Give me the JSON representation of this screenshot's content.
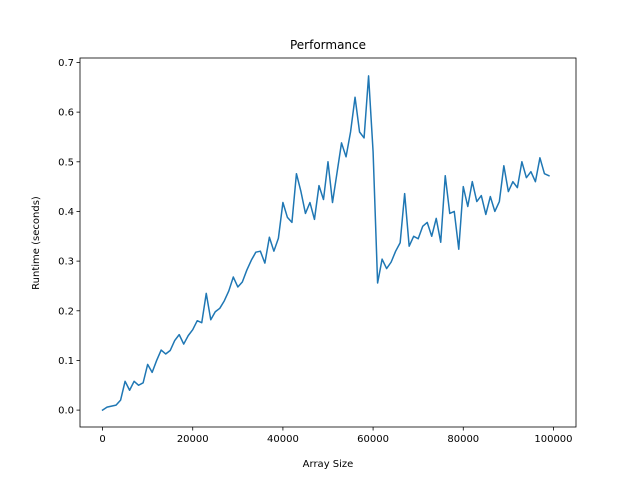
{
  "chart_data": {
    "type": "line",
    "title": "Performance",
    "xlabel": "Array Size",
    "ylabel": "Runtime (seconds)",
    "xlim": [
      -5000,
      105000
    ],
    "ylim": [
      -0.034,
      0.709
    ],
    "grid": false,
    "x_ticks": [
      0,
      20000,
      40000,
      60000,
      80000,
      100000
    ],
    "x_tick_labels": [
      "0",
      "20000",
      "40000",
      "60000",
      "80000",
      "100000"
    ],
    "y_ticks": [
      0.0,
      0.1,
      0.2,
      0.3,
      0.4,
      0.5,
      0.6,
      0.7
    ],
    "y_tick_labels": [
      "0.0",
      "0.1",
      "0.2",
      "0.3",
      "0.4",
      "0.5",
      "0.6",
      "0.7"
    ],
    "series": [
      {
        "color": "#1f77b4",
        "x": [
          0,
          1000,
          2000,
          3000,
          4000,
          5000,
          6000,
          7000,
          8000,
          9000,
          10000,
          11000,
          12000,
          13000,
          14000,
          15000,
          16000,
          17000,
          18000,
          19000,
          20000,
          21000,
          22000,
          23000,
          24000,
          25000,
          26000,
          27000,
          28000,
          29000,
          30000,
          31000,
          32000,
          33000,
          34000,
          35000,
          36000,
          37000,
          38000,
          39000,
          40000,
          41000,
          42000,
          43000,
          44000,
          45000,
          46000,
          47000,
          48000,
          49000,
          50000,
          51000,
          52000,
          53000,
          54000,
          55000,
          56000,
          57000,
          58000,
          59000,
          60000,
          61000,
          62000,
          63000,
          64000,
          65000,
          66000,
          67000,
          68000,
          69000,
          70000,
          71000,
          72000,
          73000,
          74000,
          75000,
          76000,
          77000,
          78000,
          79000,
          80000,
          81000,
          82000,
          83000,
          84000,
          85000,
          86000,
          87000,
          88000,
          89000,
          90000,
          91000,
          92000,
          93000,
          94000,
          95000,
          96000,
          97000,
          98000,
          99000
        ],
        "y": [
          0.0,
          0.006,
          0.008,
          0.01,
          0.02,
          0.058,
          0.04,
          0.058,
          0.05,
          0.055,
          0.092,
          0.076,
          0.1,
          0.121,
          0.113,
          0.12,
          0.14,
          0.152,
          0.133,
          0.15,
          0.162,
          0.18,
          0.176,
          0.235,
          0.182,
          0.198,
          0.205,
          0.22,
          0.24,
          0.268,
          0.248,
          0.258,
          0.282,
          0.302,
          0.318,
          0.32,
          0.296,
          0.348,
          0.32,
          0.346,
          0.418,
          0.388,
          0.378,
          0.476,
          0.44,
          0.396,
          0.418,
          0.384,
          0.452,
          0.424,
          0.5,
          0.418,
          0.478,
          0.538,
          0.51,
          0.56,
          0.63,
          0.56,
          0.548,
          0.673,
          0.52,
          0.256,
          0.304,
          0.285,
          0.298,
          0.32,
          0.337,
          0.436,
          0.33,
          0.35,
          0.345,
          0.37,
          0.378,
          0.35,
          0.386,
          0.338,
          0.472,
          0.396,
          0.4,
          0.324,
          0.45,
          0.41,
          0.46,
          0.42,
          0.432,
          0.394,
          0.43,
          0.4,
          0.42,
          0.492,
          0.44,
          0.46,
          0.448,
          0.5,
          0.468,
          0.48,
          0.46,
          0.508,
          0.476,
          0.472
        ]
      }
    ]
  }
}
